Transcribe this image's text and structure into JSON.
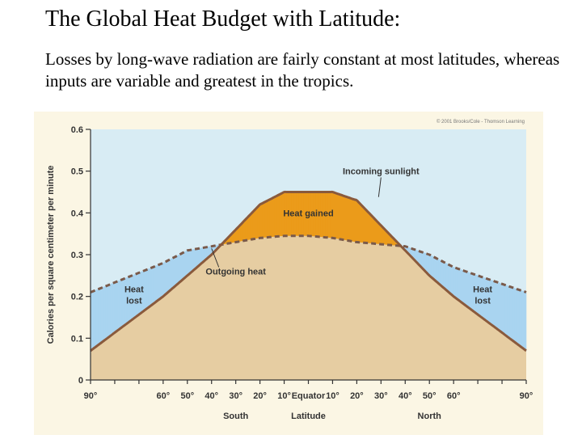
{
  "slide": {
    "title": "The Global Heat Budget with Latitude:",
    "body": "Losses by long-wave radiation are fairly constant at most latitudes, whereas inputs are variable and greatest in the tropics."
  },
  "colors": {
    "figure_bg": "#fbf6e4",
    "plot_bg": "#d8ecf4",
    "heat_lost": "#a9d4f0",
    "heat_gained": "#eb9b1a",
    "below_curves": "#e6cda2",
    "incoming_line": "#8a5a3c",
    "outgoing_line": "#7a5a4a"
  },
  "chart_data": {
    "type": "area",
    "ylabel": "Calories per square centimeter per minute",
    "xlabel": "Latitude",
    "ylim": [
      0,
      0.6
    ],
    "yticks": [
      "0",
      "0.1",
      "0.2",
      "0.3",
      "0.4",
      "0.5",
      "0.6"
    ],
    "ytick_values": [
      0,
      0.1,
      0.2,
      0.3,
      0.4,
      0.5,
      0.6
    ],
    "x_direction_labels": [
      "South",
      "North"
    ],
    "x_center_label": "Equator",
    "xlim": [
      -90,
      90
    ],
    "xticks": [
      {
        "label": "90°",
        "value": -90
      },
      {
        "label": "60°",
        "value": -60
      },
      {
        "label": "50°",
        "value": -50
      },
      {
        "label": "40°",
        "value": -40
      },
      {
        "label": "30°",
        "value": -30
      },
      {
        "label": "20°",
        "value": -20
      },
      {
        "label": "10°",
        "value": -10
      },
      {
        "label": "10°",
        "value": 10
      },
      {
        "label": "20°",
        "value": 20
      },
      {
        "label": "30°",
        "value": 30
      },
      {
        "label": "40°",
        "value": 40
      },
      {
        "label": "50°",
        "value": 50
      },
      {
        "label": "60°",
        "value": 60
      },
      {
        "label": "90°",
        "value": 90
      }
    ],
    "tick_marks": [
      -90,
      -80,
      -70,
      -60,
      -50,
      -40,
      -30,
      -20,
      -10,
      0,
      10,
      20,
      30,
      40,
      50,
      60,
      70,
      80,
      90
    ],
    "series": [
      {
        "name": "Incoming sunlight",
        "style": "solid",
        "x": [
          -90,
          -60,
          -50,
          -40,
          -30,
          -20,
          -10,
          0,
          10,
          20,
          30,
          40,
          50,
          60,
          90
        ],
        "y": [
          0.07,
          0.2,
          0.25,
          0.3,
          0.36,
          0.42,
          0.45,
          0.45,
          0.45,
          0.43,
          0.37,
          0.31,
          0.25,
          0.2,
          0.07
        ]
      },
      {
        "name": "Outgoing heat",
        "style": "dashed",
        "x": [
          -90,
          -60,
          -50,
          -40,
          -30,
          -20,
          -10,
          0,
          10,
          20,
          30,
          40,
          50,
          60,
          90
        ],
        "y": [
          0.21,
          0.28,
          0.31,
          0.32,
          0.33,
          0.34,
          0.345,
          0.345,
          0.34,
          0.33,
          0.325,
          0.32,
          0.3,
          0.27,
          0.21
        ]
      }
    ],
    "annotations": [
      {
        "text": "Incoming sunlight",
        "x": 30,
        "y": 0.5
      },
      {
        "text": "Heat gained",
        "x": 0,
        "y": 0.4
      },
      {
        "text": "Outgoing heat",
        "x": -30,
        "y": 0.26
      },
      {
        "text": "Heat lost",
        "x": -72,
        "y": 0.21
      },
      {
        "text": "Heat lost",
        "x": 72,
        "y": 0.21
      }
    ],
    "credit": "© 2001 Brooks/Cole - Thomson Learning"
  }
}
